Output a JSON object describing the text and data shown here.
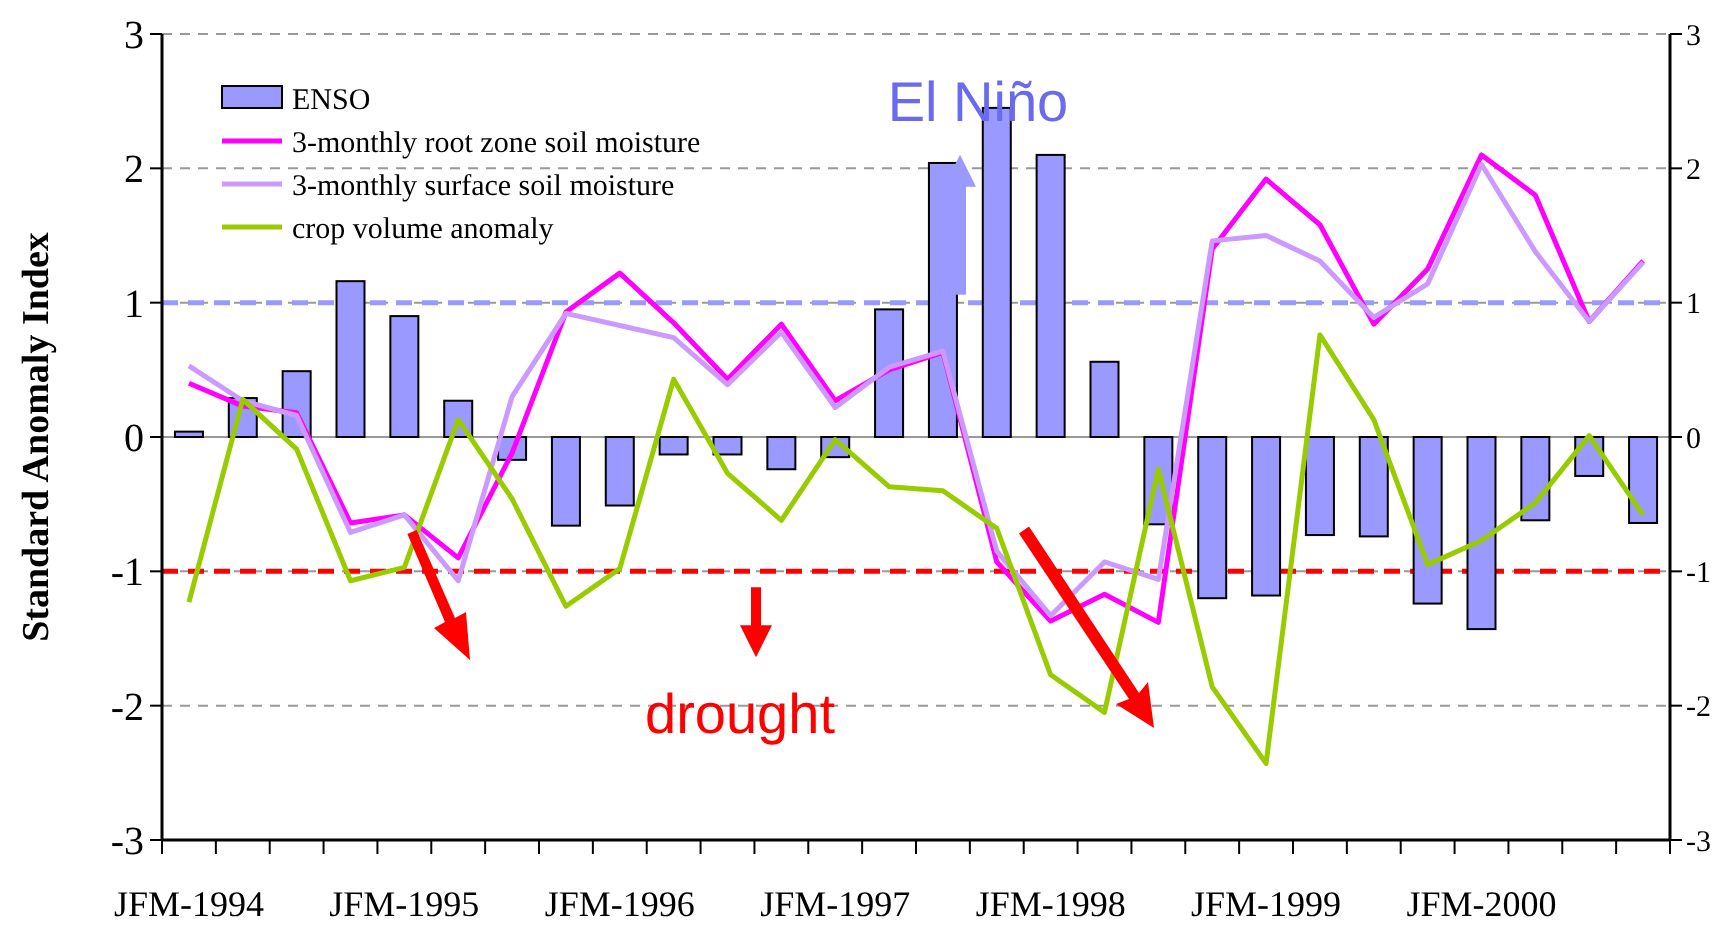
{
  "chart_data": {
    "type": "bar",
    "ylabel": "Standard Anomaly Index",
    "categories": [
      "JFM-1994",
      null,
      null,
      null,
      "JFM-1995",
      null,
      null,
      null,
      "JFM-1996",
      null,
      null,
      null,
      "JFM-1997",
      null,
      null,
      null,
      "JFM-1998",
      null,
      null,
      null,
      "JFM-1999",
      null,
      null,
      null,
      "JFM-2000",
      null,
      null,
      null
    ],
    "series": [
      {
        "name": "ENSO",
        "color": "#9999ff",
        "values": [
          0.04,
          0.29,
          0.49,
          1.16,
          0.9,
          0.27,
          -0.17,
          -0.66,
          -0.51,
          -0.13,
          -0.13,
          -0.24,
          -0.15,
          0.95,
          2.04,
          2.45,
          2.1,
          0.56,
          -0.65,
          -1.2,
          -1.18,
          -0.73,
          -0.74,
          -1.24,
          -1.43,
          -0.62,
          -0.29,
          -0.64
        ]
      },
      {
        "name": "3-monthly root zone soil moisture",
        "type": "line",
        "color": "#ff00ff",
        "values": [
          0.4,
          0.23,
          0.18,
          -0.64,
          -0.58,
          -0.9,
          -0.12,
          0.93,
          1.22,
          0.85,
          0.43,
          0.84,
          0.27,
          0.5,
          0.63,
          -0.93,
          -1.37,
          -1.17,
          -1.38,
          1.4,
          1.92,
          1.58,
          0.84,
          1.25,
          2.1,
          1.8,
          0.86,
          1.31
        ]
      },
      {
        "name": "3-monthly surface soil moisture",
        "type": "line",
        "color": "#cc99ff",
        "values": [
          0.53,
          0.27,
          0.16,
          -0.71,
          -0.58,
          -1.07,
          0.3,
          0.92,
          0.83,
          0.74,
          0.39,
          0.78,
          0.22,
          0.52,
          0.64,
          -0.85,
          -1.33,
          -0.93,
          -1.06,
          1.46,
          1.5,
          1.31,
          0.89,
          1.14,
          2.03,
          1.38,
          0.86,
          1.3
        ]
      },
      {
        "name": "crop volume anomaly",
        "type": "line",
        "color": "#99cc00",
        "values": [
          -1.23,
          0.28,
          -0.09,
          -1.07,
          -0.97,
          0.13,
          -0.46,
          -1.26,
          -0.98,
          0.43,
          -0.27,
          -0.62,
          -0.02,
          -0.37,
          -0.4,
          -0.68,
          -1.77,
          -2.05,
          -0.24,
          -1.86,
          -2.43,
          0.76,
          0.13,
          -0.95,
          -0.77,
          -0.49,
          0.01,
          -0.58
        ]
      }
    ],
    "ylim": [
      -3,
      3
    ],
    "yticks": [
      -3,
      -2,
      -1,
      0,
      1,
      2,
      3
    ],
    "y2lim": [
      -3,
      3
    ],
    "y2ticks": [
      -3,
      -2,
      -1,
      0,
      1,
      2,
      3
    ],
    "grid": "y",
    "legend": "top left",
    "marker": "none",
    "line_style": "solid",
    "ref_lines": [
      {
        "axis": "y",
        "value": 1,
        "color": "#9999ff",
        "line_style": "dashed"
      },
      {
        "axis": "y",
        "value": -1,
        "color": "#ff0000",
        "line_style": "dashed"
      }
    ],
    "annotations": [
      "El Niño",
      "drought"
    ]
  }
}
